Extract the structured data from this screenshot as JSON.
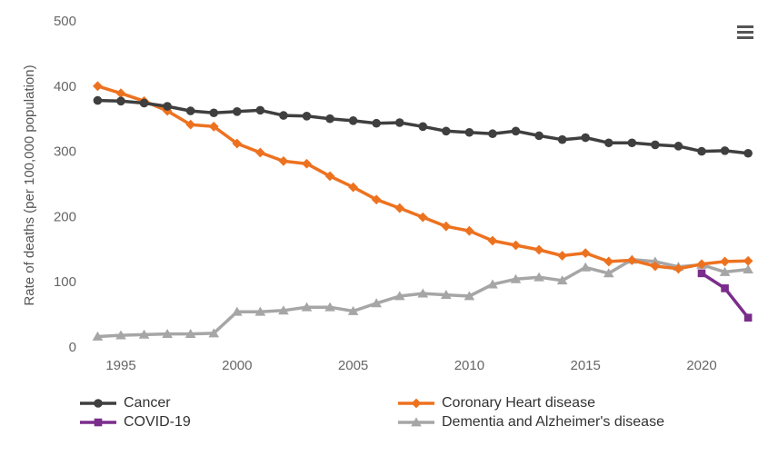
{
  "header": {
    "menu_button": {
      "icon": "hamburger-menu-icon"
    }
  },
  "chart_data": {
    "type": "line",
    "title": "",
    "xlabel": "",
    "ylabel": "Rate of deaths (per 100,000 population)",
    "grid": false,
    "legend_position": "bottom",
    "xlim": [
      1994,
      2022
    ],
    "ylim": [
      0,
      500
    ],
    "x_ticks": [
      1995,
      2000,
      2005,
      2010,
      2015,
      2020
    ],
    "y_ticks": [
      0,
      100,
      200,
      300,
      400,
      500
    ],
    "years": [
      1994,
      1995,
      1996,
      1997,
      1998,
      1999,
      2000,
      2001,
      2002,
      2003,
      2004,
      2005,
      2006,
      2007,
      2008,
      2009,
      2010,
      2011,
      2012,
      2013,
      2014,
      2015,
      2016,
      2017,
      2018,
      2019,
      2020,
      2021,
      2022
    ],
    "series": [
      {
        "id": "cancer",
        "name": "Cancer",
        "color": "#3F3F3F",
        "marker": "circle",
        "values": [
          378,
          377,
          374,
          369,
          362,
          359,
          361,
          363,
          355,
          354,
          350,
          347,
          343,
          344,
          338,
          331,
          329,
          327,
          331,
          324,
          318,
          321,
          313,
          313,
          310,
          308,
          300,
          301,
          297
        ]
      },
      {
        "id": "chd",
        "name": "Coronary Heart disease",
        "color": "#ED7220",
        "marker": "diamond",
        "values": [
          400,
          389,
          377,
          362,
          341,
          338,
          312,
          298,
          285,
          281,
          262,
          245,
          226,
          213,
          199,
          185,
          178,
          163,
          156,
          149,
          140,
          144,
          131,
          133,
          124,
          120,
          127,
          131,
          132
        ]
      },
      {
        "id": "covid",
        "name": "COVID-19",
        "color": "#7B2D8B",
        "marker": "square",
        "years": [
          2020,
          2021,
          2022
        ],
        "values": [
          113,
          90,
          45
        ]
      },
      {
        "id": "dementia",
        "name": "Dementia and Alzheimer's disease",
        "color": "#A6A6A6",
        "marker": "triangle",
        "values": [
          16,
          18,
          19,
          20,
          20,
          21,
          54,
          54,
          56,
          61,
          61,
          55,
          67,
          78,
          82,
          80,
          78,
          96,
          104,
          107,
          102,
          122,
          113,
          134,
          131,
          123,
          126,
          115,
          119
        ]
      }
    ],
    "draw_order": [
      "dementia",
      "chd",
      "cancer",
      "covid"
    ]
  },
  "legend": {
    "columns": [
      [
        "cancer",
        "covid"
      ],
      [
        "chd",
        "dementia"
      ]
    ]
  }
}
